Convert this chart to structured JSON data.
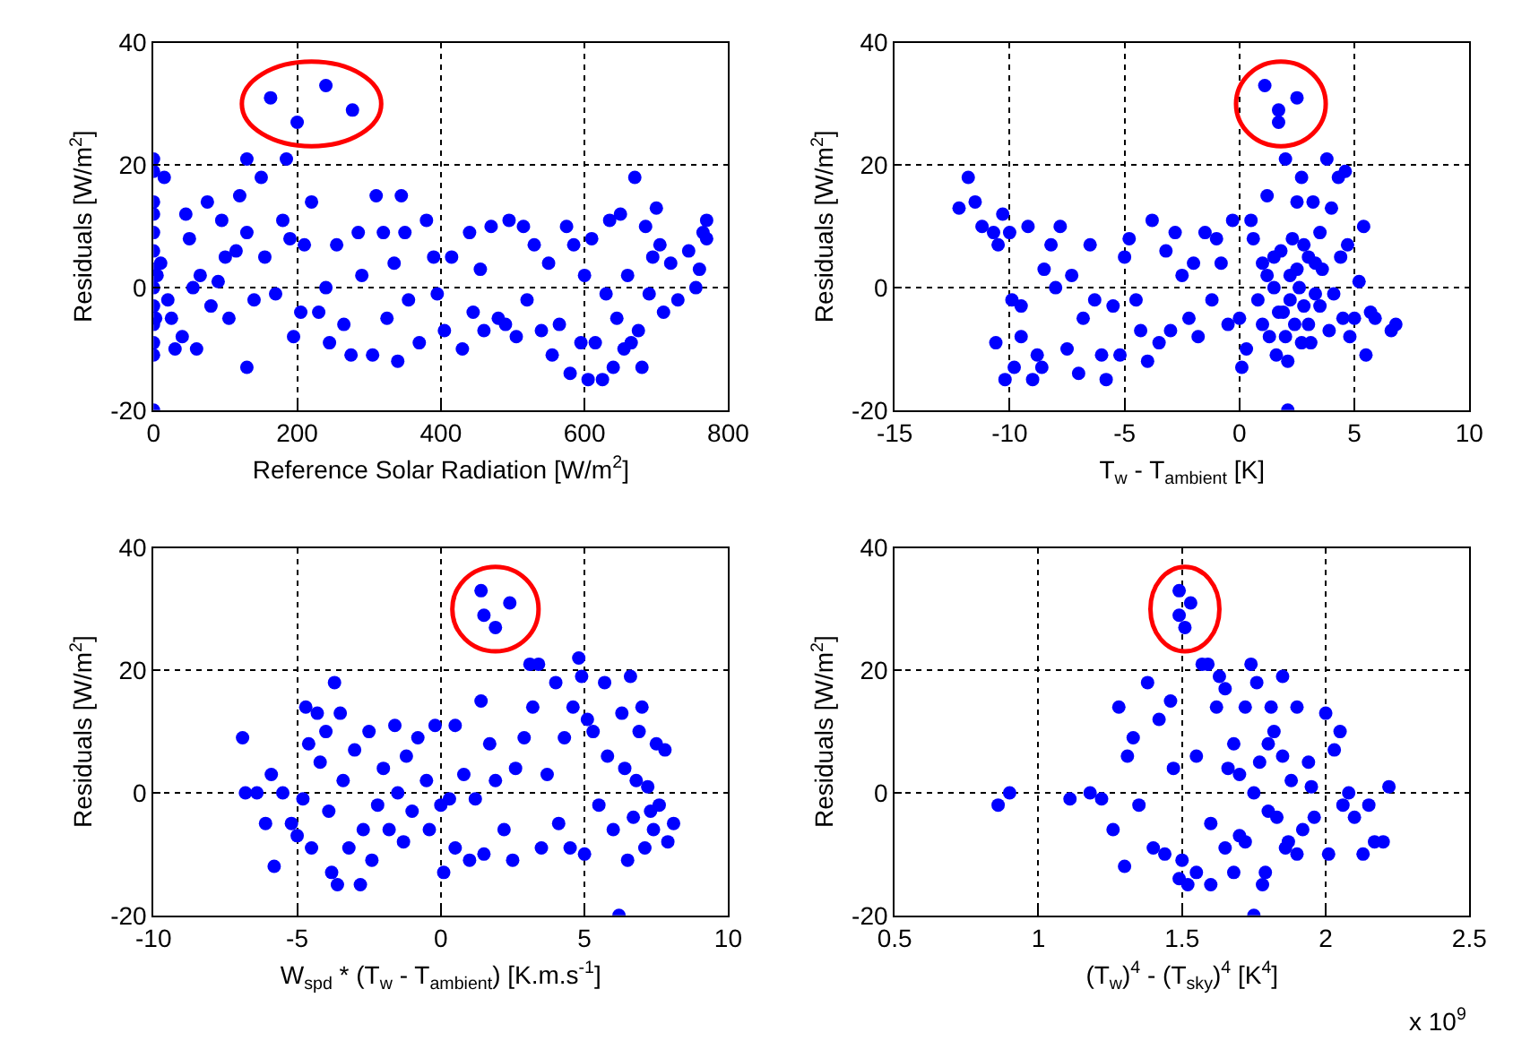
{
  "chart_data": [
    {
      "type": "scatter",
      "xlabel": "Reference Solar Radiation [W/m$^{2}$]",
      "ylabel": "Residuals [W/m$^{2}$]",
      "xlim": [
        0,
        800
      ],
      "xticks": [
        0,
        200,
        400,
        600,
        800
      ],
      "ylim": [
        -20,
        40
      ],
      "yticks": [
        -20,
        0,
        20,
        40
      ],
      "grid": true,
      "marker": "circle",
      "series": [
        {
          "color": "#0000ff",
          "x": [
            163,
            200,
            240,
            277,
            0,
            0,
            0,
            0,
            0,
            0,
            0,
            0,
            0,
            0,
            0,
            0,
            0,
            3,
            5,
            10,
            15,
            20,
            25,
            30,
            40,
            45,
            50,
            55,
            60,
            65,
            75,
            80,
            90,
            95,
            100,
            105,
            115,
            120,
            130,
            130,
            130,
            140,
            150,
            155,
            170,
            180,
            185,
            190,
            195,
            205,
            210,
            220,
            230,
            240,
            245,
            255,
            265,
            275,
            285,
            290,
            305,
            310,
            320,
            325,
            335,
            340,
            345,
            350,
            355,
            370,
            380,
            390,
            395,
            405,
            415,
            430,
            440,
            445,
            455,
            460,
            470,
            480,
            490,
            495,
            505,
            515,
            520,
            530,
            540,
            550,
            555,
            565,
            575,
            580,
            585,
            595,
            600,
            605,
            610,
            615,
            625,
            630,
            635,
            640,
            645,
            650,
            655,
            660,
            665,
            670,
            675,
            680,
            685,
            690,
            695,
            700,
            705,
            710,
            720,
            730,
            745,
            755,
            760,
            765,
            770,
            770
          ],
          "values": [
            31,
            27,
            33,
            29,
            21,
            19,
            14,
            12,
            9,
            6,
            3,
            0,
            -3,
            -6,
            -9,
            -11,
            -20,
            -5,
            2,
            4,
            18,
            -2,
            -5,
            -10,
            -8,
            12,
            8,
            0,
            -10,
            2,
            14,
            -3,
            1,
            11,
            5,
            -5,
            6,
            15,
            9,
            -13,
            21,
            -2,
            18,
            5,
            -1,
            11,
            21,
            8,
            -8,
            -4,
            7,
            14,
            -4,
            0,
            -9,
            7,
            -6,
            -11,
            9,
            2,
            -11,
            15,
            9,
            -5,
            4,
            -12,
            15,
            9,
            -2,
            -9,
            11,
            5,
            -1,
            -7,
            5,
            -10,
            9,
            -4,
            3,
            -7,
            10,
            -5,
            -6,
            11,
            -8,
            10,
            -2,
            7,
            -7,
            4,
            -11,
            -6,
            10,
            -14,
            7,
            -9,
            2,
            -15,
            8,
            -9,
            -15,
            -1,
            11,
            -13,
            -5,
            12,
            -10,
            2,
            -9,
            18,
            -7,
            -13,
            10,
            -1,
            5,
            13,
            7,
            -4,
            4,
            -2,
            6,
            0,
            3,
            9,
            8,
            11
          ]
        }
      ]
    },
    {
      "type": "scatter",
      "xlabel": "T$_{w}$ - T$_{ambient}$ [K]",
      "ylabel": "Residuals [W/m$^{2}$]",
      "xlim": [
        -15,
        10
      ],
      "xticks": [
        -15,
        -10,
        -5,
        0,
        5,
        10
      ],
      "ylim": [
        -20,
        40
      ],
      "yticks": [
        -20,
        0,
        20,
        40
      ],
      "grid": true,
      "marker": "circle",
      "series": [
        {
          "color": "#0000ff",
          "x": [
            1.1,
            1.7,
            1.7,
            2.5,
            -12.2,
            -11.8,
            -11.5,
            -11.2,
            -10.7,
            -10.5,
            -10.3,
            -10.0,
            -9.9,
            -10.6,
            -10.2,
            -9.8,
            -9.5,
            -9.5,
            -9.2,
            -9.0,
            -8.8,
            -8.6,
            -8.5,
            -8.2,
            -8.0,
            -7.8,
            -7.5,
            -7.3,
            -7.0,
            -6.8,
            -6.5,
            -6.3,
            -6.0,
            -5.8,
            -5.5,
            -5.2,
            -5.0,
            -4.8,
            -4.5,
            -4.3,
            -4.0,
            -3.8,
            -3.5,
            -3.2,
            -3.0,
            -2.8,
            -2.5,
            -2.2,
            -2.0,
            -1.8,
            -1.5,
            -1.2,
            -1.0,
            -0.8,
            -0.5,
            -0.3,
            0,
            0.1,
            0.3,
            0.5,
            0.6,
            0.8,
            1.0,
            1.2,
            1.3,
            1.5,
            1.6,
            1.8,
            1.9,
            2.0,
            2.1,
            2.1,
            2.2,
            2.3,
            2.4,
            2.5,
            2.6,
            2.7,
            2.8,
            3.0,
            3.1,
            3.2,
            3.3,
            3.5,
            3.6,
            3.8,
            3.9,
            4.0,
            4.1,
            4.3,
            4.4,
            4.5,
            4.6,
            4.7,
            4.8,
            5.0,
            5.2,
            5.4,
            5.5,
            5.7,
            5.9,
            6.6,
            6.8,
            1.0,
            1.5,
            2.0,
            2.5,
            3.0,
            3.5,
            1.2,
            2.2,
            2.8,
            3.3,
            1.7,
            2.7
          ],
          "values": [
            33,
            29,
            27,
            31,
            13,
            18,
            14,
            10,
            9,
            7,
            12,
            9,
            -2,
            -9,
            -15,
            -13,
            -3,
            -8,
            10,
            -15,
            -11,
            -13,
            3,
            7,
            0,
            10,
            -10,
            2,
            -14,
            -5,
            7,
            -2,
            -11,
            -15,
            -3,
            -11,
            5,
            8,
            -2,
            -7,
            -12,
            11,
            -9,
            6,
            -7,
            9,
            2,
            -5,
            4,
            -8,
            9,
            -2,
            8,
            4,
            -6,
            11,
            -5,
            -13,
            -10,
            11,
            8,
            -2,
            4,
            15,
            -8,
            0,
            -11,
            6,
            -4,
            21,
            -12,
            -20,
            2,
            8,
            -6,
            14,
            0,
            18,
            -3,
            5,
            -9,
            14,
            -1,
            9,
            3,
            21,
            -7,
            13,
            -1,
            18,
            5,
            -5,
            19,
            7,
            -8,
            -5,
            1,
            10,
            -11,
            -4,
            -5,
            -7,
            -6,
            -6,
            5,
            -8,
            3,
            -6,
            -3,
            2,
            -2,
            7,
            4,
            -4,
            -9
          ]
        }
      ]
    },
    {
      "type": "scatter",
      "xlabel": "W$_{spd}$ * (T$_{w}$ - T$_{ambient}$) [K.m.s$^{-1}$]",
      "ylabel": "Residuals [W/m$^{2}$]",
      "xlim": [
        -10,
        10
      ],
      "xticks": [
        -10,
        -5,
        0,
        5,
        10
      ],
      "ylim": [
        -20,
        40
      ],
      "yticks": [
        -20,
        0,
        20,
        40
      ],
      "grid": true,
      "marker": "circle",
      "series": [
        {
          "color": "#0000ff",
          "x": [
            1.4,
            1.5,
            1.9,
            2.4,
            -6.9,
            -6.8,
            -6.4,
            -6.1,
            -5.9,
            -5.8,
            -5.5,
            -5.2,
            -5.0,
            -4.8,
            -4.7,
            -4.6,
            -4.5,
            -4.3,
            -4.2,
            -4.0,
            -3.9,
            -3.8,
            -3.7,
            -3.6,
            -3.5,
            -3.4,
            -3.2,
            -3.0,
            -2.8,
            -2.7,
            -2.5,
            -2.4,
            -2.2,
            -2.0,
            -1.8,
            -1.6,
            -1.5,
            -1.3,
            -1.2,
            -1.0,
            -0.8,
            -0.5,
            -0.4,
            -0.2,
            0,
            0.1,
            0.3,
            0.5,
            0.5,
            0.8,
            1.0,
            1.2,
            1.4,
            1.5,
            1.7,
            1.9,
            2.2,
            2.5,
            2.6,
            2.9,
            3.1,
            3.2,
            3.4,
            3.5,
            3.7,
            4.0,
            4.1,
            4.3,
            4.5,
            4.6,
            4.8,
            4.9,
            5.0,
            5.1,
            5.3,
            5.5,
            5.7,
            5.8,
            6.0,
            6.2,
            6.3,
            6.5,
            6.6,
            6.7,
            6.9,
            7.0,
            7.1,
            7.2,
            7.4,
            7.5,
            7.6,
            7.8,
            7.9,
            8.1,
            6.4,
            7.3,
            6.8
          ],
          "values": [
            33,
            29,
            27,
            31,
            9,
            0,
            0,
            -5,
            3,
            -12,
            0,
            -5,
            -7,
            -1,
            14,
            8,
            -9,
            13,
            5,
            10,
            -3,
            -13,
            18,
            -15,
            13,
            2,
            -9,
            7,
            -15,
            -6,
            10,
            -11,
            -2,
            4,
            -6,
            11,
            0,
            -8,
            6,
            -3,
            9,
            2,
            -6,
            11,
            -2,
            -13,
            -1,
            11,
            -9,
            3,
            -11,
            -1,
            15,
            -10,
            8,
            2,
            -6,
            -11,
            4,
            9,
            21,
            14,
            21,
            -9,
            3,
            18,
            -5,
            9,
            -9,
            14,
            22,
            19,
            -10,
            12,
            10,
            -2,
            18,
            6,
            -6,
            -20,
            13,
            -11,
            19,
            -4,
            10,
            14,
            -9,
            1,
            -6,
            8,
            -2,
            7,
            -8,
            -5,
            4,
            -3,
            2
          ]
        }
      ]
    },
    {
      "type": "scatter",
      "xlabel": "(T$_{w}$)$^{4}$ - (T$_{sky}$)$^{4}$ [K$^{4}$]",
      "ylabel": "Residuals [W/m$^{2}$]",
      "xlim": [
        0.5,
        2.5
      ],
      "xticks": [
        0.5,
        1,
        1.5,
        2,
        2.5
      ],
      "ylim": [
        -20,
        40
      ],
      "yticks": [
        -20,
        0,
        20,
        40
      ],
      "grid": true,
      "marker": "circle",
      "annotations": [
        "x 10$^{9}$"
      ],
      "series": [
        {
          "color": "#0000ff",
          "x": [
            1.49,
            1.49,
            1.53,
            1.51,
            0.86,
            0.9,
            1.11,
            1.18,
            1.22,
            1.26,
            1.28,
            1.3,
            1.31,
            1.33,
            1.35,
            1.38,
            1.4,
            1.42,
            1.44,
            1.46,
            1.47,
            1.49,
            1.5,
            1.52,
            1.55,
            1.57,
            1.59,
            1.6,
            1.62,
            1.63,
            1.65,
            1.66,
            1.68,
            1.7,
            1.72,
            1.74,
            1.75,
            1.76,
            1.78,
            1.79,
            1.8,
            1.81,
            1.83,
            1.85,
            1.86,
            1.88,
            1.9,
            1.92,
            1.94,
            1.96,
            2.0,
            2.01,
            2.03,
            2.05,
            2.06,
            2.08,
            2.1,
            2.13,
            2.15,
            2.17,
            2.2,
            2.22,
            1.55,
            1.6,
            1.65,
            1.7,
            1.75,
            1.8,
            1.85,
            1.9,
            1.95,
            1.72,
            1.82,
            1.68,
            1.77,
            1.87
          ],
          "values": [
            33,
            29,
            31,
            27,
            -2,
            0,
            -1,
            0,
            -1,
            -6,
            14,
            -12,
            6,
            9,
            -2,
            18,
            -9,
            12,
            -10,
            15,
            4,
            -14,
            -11,
            -15,
            -13,
            21,
            21,
            -15,
            14,
            19,
            17,
            4,
            -13,
            -7,
            14,
            21,
            -20,
            18,
            -15,
            -13,
            8,
            14,
            -4,
            19,
            -9,
            2,
            14,
            -6,
            5,
            -4,
            13,
            -10,
            7,
            10,
            -2,
            0,
            -4,
            -10,
            -2,
            -8,
            -8,
            1,
            6,
            -5,
            -9,
            3,
            0,
            -3,
            6,
            -10,
            1,
            -8,
            10,
            8,
            5,
            -8
          ]
        }
      ]
    }
  ]
}
